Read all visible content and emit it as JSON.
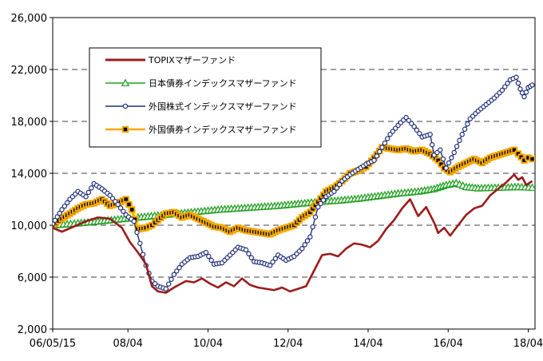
{
  "chart_data": {
    "type": "line",
    "title": "",
    "xlabel": "",
    "ylabel": "",
    "ylim": [
      2000,
      26000
    ],
    "yticks": [
      2000,
      6000,
      10000,
      14000,
      18000,
      22000,
      26000
    ],
    "ytick_labels": [
      "2,000",
      "6,000",
      "10,000",
      "14,000",
      "18,000",
      "22,000",
      "26,000"
    ],
    "xlim": [
      2006.37,
      2018.42
    ],
    "xticks": [
      2006.37,
      2008.25,
      2010.25,
      2012.25,
      2014.25,
      2016.25,
      2018.25
    ],
    "xtick_labels": [
      "06/05/15",
      "08/04",
      "10/04",
      "12/04",
      "14/04",
      "16/04",
      "18/04"
    ],
    "grid": {
      "horizontal_dashed": true,
      "vertical": false
    },
    "legend_position": "upper-left",
    "series": [
      {
        "name": "TOPIXマザーファンド",
        "color": "#9b1c1c",
        "marker": "none",
        "points": [
          [
            2006.37,
            9800
          ],
          [
            2006.6,
            9500
          ],
          [
            2006.9,
            9900
          ],
          [
            2007.2,
            10300
          ],
          [
            2007.5,
            10600
          ],
          [
            2007.8,
            10500
          ],
          [
            2008.1,
            9800
          ],
          [
            2008.3,
            8700
          ],
          [
            2008.5,
            7900
          ],
          [
            2008.7,
            7000
          ],
          [
            2008.85,
            5300
          ],
          [
            2009.0,
            4900
          ],
          [
            2009.2,
            4800
          ],
          [
            2009.4,
            5200
          ],
          [
            2009.7,
            5700
          ],
          [
            2009.9,
            5600
          ],
          [
            2010.1,
            5900
          ],
          [
            2010.3,
            5500
          ],
          [
            2010.5,
            5200
          ],
          [
            2010.7,
            5600
          ],
          [
            2010.9,
            5300
          ],
          [
            2011.1,
            5900
          ],
          [
            2011.3,
            5400
          ],
          [
            2011.5,
            5200
          ],
          [
            2011.7,
            5100
          ],
          [
            2011.9,
            5000
          ],
          [
            2012.1,
            5200
          ],
          [
            2012.3,
            4900
          ],
          [
            2012.5,
            5100
          ],
          [
            2012.7,
            5300
          ],
          [
            2012.9,
            6500
          ],
          [
            2013.1,
            7700
          ],
          [
            2013.3,
            7800
          ],
          [
            2013.5,
            7600
          ],
          [
            2013.7,
            8200
          ],
          [
            2013.9,
            8600
          ],
          [
            2014.1,
            8500
          ],
          [
            2014.3,
            8300
          ],
          [
            2014.5,
            8800
          ],
          [
            2014.7,
            9700
          ],
          [
            2014.9,
            10400
          ],
          [
            2015.1,
            11300
          ],
          [
            2015.3,
            12000
          ],
          [
            2015.5,
            10700
          ],
          [
            2015.7,
            11400
          ],
          [
            2015.9,
            10200
          ],
          [
            2016.0,
            9400
          ],
          [
            2016.15,
            9800
          ],
          [
            2016.3,
            9200
          ],
          [
            2016.5,
            10000
          ],
          [
            2016.7,
            10800
          ],
          [
            2016.9,
            11300
          ],
          [
            2017.1,
            11500
          ],
          [
            2017.3,
            12300
          ],
          [
            2017.5,
            12800
          ],
          [
            2017.7,
            13300
          ],
          [
            2017.9,
            13900
          ],
          [
            2018.0,
            13500
          ],
          [
            2018.1,
            13700
          ],
          [
            2018.2,
            13100
          ],
          [
            2018.35,
            13400
          ]
        ]
      },
      {
        "name": "日本債券インデックスマザーファンド",
        "color": "#22a022",
        "marker": "triangle",
        "points": [
          [
            2006.37,
            10000
          ],
          [
            2007.0,
            10150
          ],
          [
            2007.5,
            10300
          ],
          [
            2008.0,
            10450
          ],
          [
            2008.5,
            10600
          ],
          [
            2009.0,
            10750
          ],
          [
            2009.5,
            10900
          ],
          [
            2010.0,
            11050
          ],
          [
            2010.5,
            11200
          ],
          [
            2011.0,
            11300
          ],
          [
            2011.5,
            11400
          ],
          [
            2012.0,
            11500
          ],
          [
            2012.5,
            11650
          ],
          [
            2013.0,
            11800
          ],
          [
            2013.5,
            11900
          ],
          [
            2014.0,
            12050
          ],
          [
            2014.5,
            12250
          ],
          [
            2015.0,
            12450
          ],
          [
            2015.5,
            12600
          ],
          [
            2015.9,
            12800
          ],
          [
            2016.2,
            13100
          ],
          [
            2016.45,
            13250
          ],
          [
            2016.7,
            12950
          ],
          [
            2017.0,
            12850
          ],
          [
            2017.5,
            12900
          ],
          [
            2018.0,
            12950
          ],
          [
            2018.35,
            12900
          ]
        ]
      },
      {
        "name": "外国株式インデックスマザーファンド",
        "color": "#1f2f7a",
        "marker": "circle",
        "points": [
          [
            2006.37,
            10100
          ],
          [
            2006.6,
            11200
          ],
          [
            2006.8,
            12000
          ],
          [
            2007.0,
            12600
          ],
          [
            2007.2,
            12200
          ],
          [
            2007.4,
            13200
          ],
          [
            2007.6,
            12800
          ],
          [
            2007.8,
            12300
          ],
          [
            2008.0,
            11600
          ],
          [
            2008.2,
            10800
          ],
          [
            2008.4,
            10300
          ],
          [
            2008.55,
            8600
          ],
          [
            2008.7,
            6900
          ],
          [
            2008.85,
            5700
          ],
          [
            2009.0,
            5300
          ],
          [
            2009.2,
            5100
          ],
          [
            2009.4,
            6200
          ],
          [
            2009.6,
            7000
          ],
          [
            2009.8,
            7500
          ],
          [
            2010.0,
            7600
          ],
          [
            2010.2,
            7900
          ],
          [
            2010.4,
            7000
          ],
          [
            2010.6,
            7100
          ],
          [
            2010.8,
            7700
          ],
          [
            2011.0,
            8300
          ],
          [
            2011.2,
            8100
          ],
          [
            2011.4,
            7200
          ],
          [
            2011.6,
            7100
          ],
          [
            2011.8,
            6900
          ],
          [
            2012.0,
            7700
          ],
          [
            2012.2,
            7300
          ],
          [
            2012.4,
            7600
          ],
          [
            2012.6,
            8200
          ],
          [
            2012.8,
            9100
          ],
          [
            2013.0,
            11400
          ],
          [
            2013.2,
            12200
          ],
          [
            2013.4,
            12600
          ],
          [
            2013.6,
            13400
          ],
          [
            2013.8,
            13900
          ],
          [
            2014.0,
            14300
          ],
          [
            2014.2,
            14700
          ],
          [
            2014.4,
            15000
          ],
          [
            2014.6,
            16000
          ],
          [
            2014.8,
            17000
          ],
          [
            2015.0,
            17700
          ],
          [
            2015.2,
            18300
          ],
          [
            2015.4,
            17600
          ],
          [
            2015.6,
            16800
          ],
          [
            2015.8,
            17000
          ],
          [
            2015.9,
            15400
          ],
          [
            2016.05,
            15800
          ],
          [
            2016.2,
            14400
          ],
          [
            2016.4,
            15600
          ],
          [
            2016.6,
            17000
          ],
          [
            2016.8,
            18200
          ],
          [
            2017.0,
            18800
          ],
          [
            2017.2,
            19300
          ],
          [
            2017.4,
            19800
          ],
          [
            2017.6,
            20400
          ],
          [
            2017.8,
            21200
          ],
          [
            2017.95,
            21400
          ],
          [
            2018.05,
            20500
          ],
          [
            2018.15,
            19900
          ],
          [
            2018.25,
            20600
          ],
          [
            2018.35,
            20800
          ]
        ]
      },
      {
        "name": "外国債券インデックスマザーファンド",
        "color": "#f5a800",
        "marker": "square",
        "points": [
          [
            2006.37,
            10000
          ],
          [
            2006.6,
            10500
          ],
          [
            2006.8,
            10900
          ],
          [
            2007.0,
            11300
          ],
          [
            2007.2,
            11600
          ],
          [
            2007.4,
            11700
          ],
          [
            2007.6,
            12000
          ],
          [
            2007.8,
            11500
          ],
          [
            2008.0,
            11700
          ],
          [
            2008.2,
            12000
          ],
          [
            2008.35,
            11200
          ],
          [
            2008.5,
            9700
          ],
          [
            2008.7,
            9800
          ],
          [
            2008.85,
            10000
          ],
          [
            2009.0,
            10400
          ],
          [
            2009.2,
            10900
          ],
          [
            2009.4,
            11000
          ],
          [
            2009.6,
            10600
          ],
          [
            2009.8,
            10800
          ],
          [
            2010.0,
            10500
          ],
          [
            2010.2,
            10200
          ],
          [
            2010.4,
            9900
          ],
          [
            2010.6,
            9800
          ],
          [
            2010.8,
            9500
          ],
          [
            2011.0,
            9800
          ],
          [
            2011.2,
            9600
          ],
          [
            2011.4,
            9500
          ],
          [
            2011.6,
            9400
          ],
          [
            2011.8,
            9300
          ],
          [
            2012.0,
            9600
          ],
          [
            2012.2,
            9800
          ],
          [
            2012.4,
            10000
          ],
          [
            2012.6,
            10600
          ],
          [
            2012.8,
            11000
          ],
          [
            2013.0,
            11800
          ],
          [
            2013.2,
            12600
          ],
          [
            2013.4,
            12900
          ],
          [
            2013.6,
            13400
          ],
          [
            2013.8,
            14000
          ],
          [
            2014.0,
            14200
          ],
          [
            2014.2,
            14500
          ],
          [
            2014.4,
            15200
          ],
          [
            2014.6,
            16000
          ],
          [
            2014.8,
            15900
          ],
          [
            2015.0,
            15800
          ],
          [
            2015.2,
            15900
          ],
          [
            2015.4,
            15700
          ],
          [
            2015.6,
            15800
          ],
          [
            2015.8,
            15500
          ],
          [
            2016.0,
            15000
          ],
          [
            2016.15,
            14400
          ],
          [
            2016.3,
            14100
          ],
          [
            2016.5,
            14500
          ],
          [
            2016.7,
            14800
          ],
          [
            2016.9,
            15100
          ],
          [
            2017.1,
            14800
          ],
          [
            2017.3,
            15200
          ],
          [
            2017.5,
            15400
          ],
          [
            2017.7,
            15600
          ],
          [
            2017.9,
            15800
          ],
          [
            2018.0,
            15500
          ],
          [
            2018.15,
            15000
          ],
          [
            2018.25,
            15200
          ],
          [
            2018.35,
            15100
          ]
        ]
      }
    ]
  }
}
